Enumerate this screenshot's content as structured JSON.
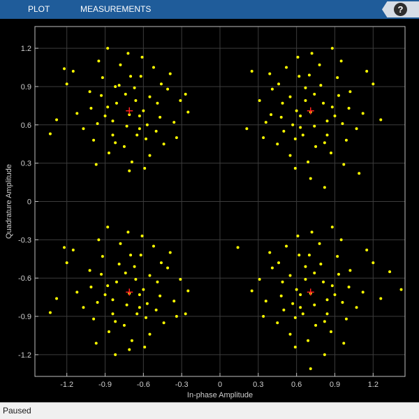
{
  "toolbar": {
    "tabs": [
      {
        "label": "PLOT"
      },
      {
        "label": "MEASUREMENTS"
      }
    ],
    "help_label": "?"
  },
  "status": {
    "text": "Paused"
  },
  "colors": {
    "toolbar": "#1f5c9a",
    "plot_bg": "#000000",
    "points": "#ffff00",
    "reference": "#ff2020",
    "grid": "#3c3c3c",
    "axes": "#bfbfbf"
  },
  "chart_data": {
    "type": "scatter",
    "title": "",
    "xlabel": "In-phase Amplitude",
    "ylabel": "Quadrature Amplitude",
    "xlim": [
      -1.45,
      1.45
    ],
    "ylim": [
      -1.37,
      1.37
    ],
    "xticks": [
      -1.2,
      -0.9,
      -0.6,
      -0.3,
      0,
      0.3,
      0.6,
      0.9,
      1.2
    ],
    "yticks": [
      1.2,
      0.9,
      0.6,
      0.3,
      0,
      -0.3,
      -0.6,
      -0.9,
      -1.2
    ],
    "xticklabels": [
      "-1.2",
      "-0.9",
      "-0.6",
      "-0.3",
      "0",
      "0.3",
      "0.6",
      "0.9",
      "1.2"
    ],
    "yticklabels": [
      "1.2",
      "0.9",
      "0.6",
      "0.3",
      "0",
      "-0.3",
      "-0.6",
      "-0.9",
      "-1.2"
    ],
    "grid": true,
    "reference_points": [
      {
        "x": -0.71,
        "y": 0.71
      },
      {
        "x": 0.71,
        "y": 0.71
      },
      {
        "x": -0.71,
        "y": -0.71
      },
      {
        "x": 0.71,
        "y": -0.71
      }
    ],
    "points": [
      [
        -0.71,
        0.68
      ],
      [
        -0.55,
        0.82
      ],
      [
        -0.88,
        0.74
      ],
      [
        -0.63,
        0.57
      ],
      [
        -0.79,
        0.91
      ],
      [
        -0.47,
        0.66
      ],
      [
        -0.96,
        0.61
      ],
      [
        -0.7,
        0.98
      ],
      [
        -0.58,
        0.49
      ],
      [
        -0.84,
        0.52
      ],
      [
        -1.02,
        0.86
      ],
      [
        -0.41,
        0.88
      ],
      [
        -0.66,
        0.79
      ],
      [
        -0.92,
        0.97
      ],
      [
        -0.52,
        1.05
      ],
      [
        -0.75,
        0.43
      ],
      [
        -1.12,
        0.69
      ],
      [
        -0.36,
        0.62
      ],
      [
        -0.87,
        0.38
      ],
      [
        -0.61,
        1.13
      ],
      [
        -1.2,
        0.92
      ],
      [
        -0.44,
        0.45
      ],
      [
        -0.99,
        0.48
      ],
      [
        -0.73,
        0.59
      ],
      [
        -0.81,
        0.77
      ],
      [
        -0.6,
        0.71
      ],
      [
        -0.93,
        0.83
      ],
      [
        -0.67,
        0.89
      ],
      [
        -0.49,
        0.77
      ],
      [
        -1.07,
        0.57
      ],
      [
        -0.78,
        1.07
      ],
      [
        -0.55,
        0.36
      ],
      [
        -1.28,
        0.64
      ],
      [
        -0.31,
        0.79
      ],
      [
        -0.88,
        1.2
      ],
      [
        -0.69,
        0.31
      ],
      [
        -1.15,
        1.02
      ],
      [
        -0.39,
        1.0
      ],
      [
        -0.97,
        0.29
      ],
      [
        -0.62,
        0.98
      ],
      [
        -0.84,
        0.63
      ],
      [
        -0.74,
        0.84
      ],
      [
        -0.57,
        0.6
      ],
      [
        -1.01,
        0.73
      ],
      [
        -0.46,
        0.92
      ],
      [
        -0.82,
        0.46
      ],
      [
        -0.65,
        0.52
      ],
      [
        -0.9,
        0.67
      ],
      [
        -0.72,
        1.16
      ],
      [
        -0.5,
        0.55
      ],
      [
        -1.33,
        0.53
      ],
      [
        -0.25,
        0.7
      ],
      [
        -0.95,
        1.1
      ],
      [
        -0.59,
        0.26
      ],
      [
        -0.27,
        0.84
      ],
      [
        -1.22,
        1.04
      ],
      [
        -0.71,
        0.24
      ],
      [
        -0.34,
        0.5
      ],
      [
        -0.82,
        0.9
      ],
      [
        -0.63,
        0.67
      ],
      [
        0.71,
        0.7
      ],
      [
        0.55,
        0.82
      ],
      [
        0.88,
        0.74
      ],
      [
        0.63,
        0.58
      ],
      [
        0.79,
        0.91
      ],
      [
        0.48,
        0.66
      ],
      [
        0.96,
        0.61
      ],
      [
        0.7,
        0.99
      ],
      [
        0.59,
        0.49
      ],
      [
        0.84,
        0.52
      ],
      [
        1.02,
        0.86
      ],
      [
        0.41,
        0.88
      ],
      [
        0.67,
        0.79
      ],
      [
        0.92,
        0.97
      ],
      [
        0.52,
        1.05
      ],
      [
        0.75,
        0.43
      ],
      [
        1.12,
        0.69
      ],
      [
        0.36,
        0.62
      ],
      [
        0.87,
        0.38
      ],
      [
        0.61,
        1.13
      ],
      [
        1.2,
        0.92
      ],
      [
        0.45,
        0.45
      ],
      [
        0.99,
        0.48
      ],
      [
        0.74,
        0.59
      ],
      [
        0.81,
        0.77
      ],
      [
        0.6,
        0.71
      ],
      [
        0.93,
        0.83
      ],
      [
        0.67,
        0.89
      ],
      [
        0.49,
        0.77
      ],
      [
        1.07,
        0.57
      ],
      [
        0.78,
        1.07
      ],
      [
        0.55,
        0.36
      ],
      [
        1.26,
        0.64
      ],
      [
        0.31,
        0.79
      ],
      [
        0.88,
        1.2
      ],
      [
        0.69,
        0.31
      ],
      [
        1.15,
        1.02
      ],
      [
        0.39,
        1.0
      ],
      [
        0.97,
        0.29
      ],
      [
        0.62,
        0.98
      ],
      [
        0.84,
        0.63
      ],
      [
        0.74,
        0.84
      ],
      [
        0.57,
        0.6
      ],
      [
        1.01,
        0.73
      ],
      [
        0.46,
        0.92
      ],
      [
        0.82,
        0.46
      ],
      [
        0.65,
        0.52
      ],
      [
        0.9,
        0.67
      ],
      [
        0.72,
        1.16
      ],
      [
        0.5,
        0.55
      ],
      [
        0.21,
        0.57
      ],
      [
        0.25,
        1.02
      ],
      [
        0.95,
        1.1
      ],
      [
        0.59,
        0.26
      ],
      [
        0.82,
        0.11
      ],
      [
        1.09,
        0.22
      ],
      [
        0.71,
        0.18
      ],
      [
        0.34,
        0.5
      ],
      [
        0.4,
        0.68
      ],
      [
        0.63,
        0.67
      ],
      [
        -0.71,
        -0.72
      ],
      [
        -0.55,
        -0.58
      ],
      [
        -0.88,
        -0.66
      ],
      [
        -0.63,
        -0.83
      ],
      [
        -0.79,
        -0.49
      ],
      [
        -0.47,
        -0.74
      ],
      [
        -0.96,
        -0.79
      ],
      [
        -0.7,
        -0.42
      ],
      [
        -0.58,
        -0.91
      ],
      [
        -0.84,
        -0.88
      ],
      [
        -1.02,
        -0.54
      ],
      [
        -0.41,
        -0.52
      ],
      [
        -0.66,
        -0.61
      ],
      [
        -0.92,
        -0.43
      ],
      [
        -0.52,
        -0.35
      ],
      [
        -0.75,
        -0.97
      ],
      [
        -1.12,
        -0.71
      ],
      [
        -0.36,
        -0.78
      ],
      [
        -0.87,
        -1.02
      ],
      [
        -0.61,
        -0.27
      ],
      [
        -1.2,
        -0.48
      ],
      [
        -0.44,
        -0.95
      ],
      [
        -0.99,
        -0.92
      ],
      [
        -0.73,
        -0.81
      ],
      [
        -0.81,
        -0.63
      ],
      [
        -0.6,
        -0.69
      ],
      [
        -0.93,
        -0.57
      ],
      [
        -0.67,
        -0.51
      ],
      [
        -0.49,
        -0.63
      ],
      [
        -1.07,
        -0.83
      ],
      [
        -0.78,
        -0.33
      ],
      [
        -0.55,
        -1.04
      ],
      [
        -1.28,
        -0.76
      ],
      [
        -0.31,
        -0.61
      ],
      [
        -0.88,
        -0.2
      ],
      [
        -0.69,
        -1.09
      ],
      [
        -1.15,
        -0.38
      ],
      [
        -0.39,
        -0.4
      ],
      [
        -0.97,
        -1.11
      ],
      [
        -0.62,
        -0.42
      ],
      [
        -0.84,
        -0.77
      ],
      [
        -0.74,
        -0.56
      ],
      [
        -0.57,
        -0.8
      ],
      [
        -1.01,
        -0.67
      ],
      [
        -0.46,
        -0.48
      ],
      [
        -0.82,
        -0.94
      ],
      [
        -0.65,
        -0.88
      ],
      [
        -0.9,
        -0.73
      ],
      [
        -0.72,
        -0.24
      ],
      [
        -0.5,
        -0.85
      ],
      [
        -1.33,
        -0.87
      ],
      [
        -0.25,
        -0.7
      ],
      [
        -0.95,
        -0.3
      ],
      [
        -0.59,
        -1.14
      ],
      [
        -0.27,
        -0.88
      ],
      [
        -1.22,
        -0.36
      ],
      [
        -0.71,
        -1.16
      ],
      [
        -0.34,
        -0.9
      ],
      [
        -0.82,
        -1.2
      ],
      [
        -0.63,
        -0.73
      ],
      [
        0.71,
        -0.72
      ],
      [
        0.55,
        -0.58
      ],
      [
        0.88,
        -0.66
      ],
      [
        0.63,
        -0.83
      ],
      [
        0.79,
        -0.49
      ],
      [
        0.48,
        -0.74
      ],
      [
        0.96,
        -0.79
      ],
      [
        0.7,
        -0.42
      ],
      [
        0.59,
        -0.91
      ],
      [
        0.84,
        -0.88
      ],
      [
        1.02,
        -0.54
      ],
      [
        0.41,
        -0.52
      ],
      [
        0.67,
        -0.61
      ],
      [
        0.92,
        -0.43
      ],
      [
        0.52,
        -0.35
      ],
      [
        0.75,
        -0.97
      ],
      [
        1.12,
        -0.71
      ],
      [
        0.36,
        -0.78
      ],
      [
        0.87,
        -1.02
      ],
      [
        0.61,
        -0.27
      ],
      [
        1.2,
        -0.48
      ],
      [
        0.45,
        -0.95
      ],
      [
        0.99,
        -0.92
      ],
      [
        0.74,
        -0.81
      ],
      [
        0.81,
        -0.63
      ],
      [
        0.6,
        -0.69
      ],
      [
        0.93,
        -0.57
      ],
      [
        0.67,
        -0.51
      ],
      [
        0.49,
        -0.63
      ],
      [
        1.07,
        -0.83
      ],
      [
        0.78,
        -0.33
      ],
      [
        0.55,
        -1.04
      ],
      [
        1.26,
        -0.76
      ],
      [
        0.31,
        -0.61
      ],
      [
        0.88,
        -0.2
      ],
      [
        0.69,
        -1.09
      ],
      [
        1.15,
        -0.38
      ],
      [
        0.39,
        -0.4
      ],
      [
        0.97,
        -1.11
      ],
      [
        0.62,
        -0.42
      ],
      [
        0.84,
        -0.77
      ],
      [
        0.74,
        -0.56
      ],
      [
        0.57,
        -0.8
      ],
      [
        1.01,
        -0.67
      ],
      [
        0.46,
        -0.48
      ],
      [
        0.82,
        -0.94
      ],
      [
        0.65,
        -0.88
      ],
      [
        0.9,
        -0.73
      ],
      [
        0.72,
        -0.24
      ],
      [
        0.5,
        -0.85
      ],
      [
        1.33,
        -0.55
      ],
      [
        0.25,
        -0.7
      ],
      [
        0.95,
        -0.3
      ],
      [
        0.59,
        -1.14
      ],
      [
        0.14,
        -0.36
      ],
      [
        1.42,
        -0.69
      ],
      [
        0.71,
        -1.31
      ],
      [
        0.34,
        -0.9
      ],
      [
        0.82,
        -1.2
      ],
      [
        0.63,
        -0.73
      ]
    ]
  }
}
